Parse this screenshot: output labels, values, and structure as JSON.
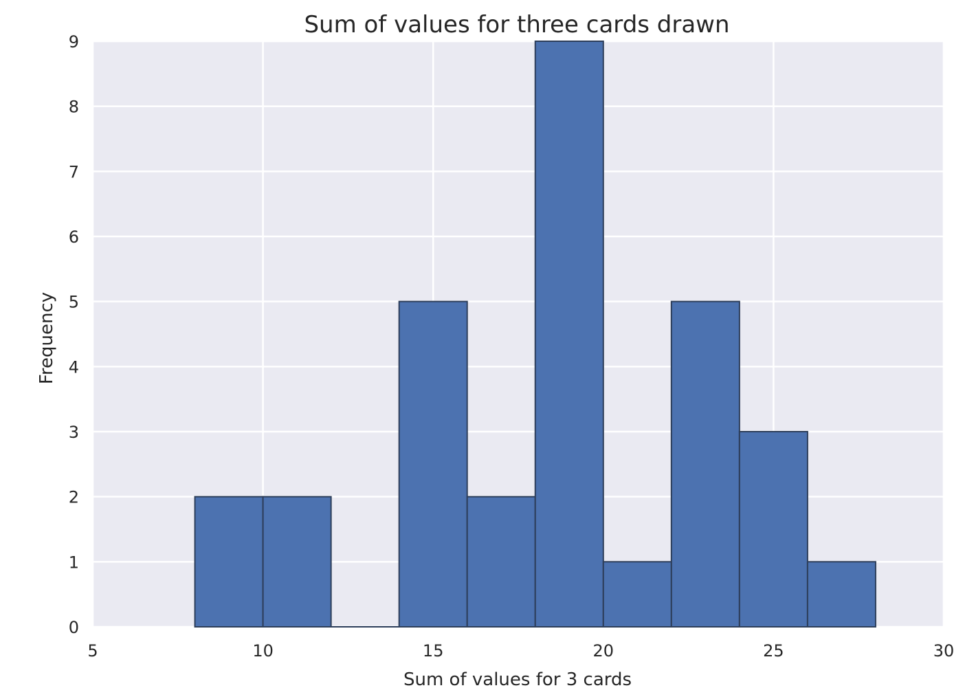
{
  "chart_data": {
    "type": "bar",
    "title": "Sum of values for three cards drawn",
    "xlabel": "Sum of values for 3 cards",
    "ylabel": "Frequency",
    "xlim": [
      5,
      30
    ],
    "ylim": [
      0,
      9
    ],
    "x_ticks": [
      5,
      10,
      15,
      20,
      25,
      30
    ],
    "y_ticks": [
      0,
      1,
      2,
      3,
      4,
      5,
      6,
      7,
      8,
      9
    ],
    "bins": [
      {
        "start": 8,
        "end": 10,
        "value": 2
      },
      {
        "start": 10,
        "end": 12,
        "value": 2
      },
      {
        "start": 12,
        "end": 14,
        "value": 0
      },
      {
        "start": 14,
        "end": 16,
        "value": 5
      },
      {
        "start": 16,
        "end": 18,
        "value": 2
      },
      {
        "start": 18,
        "end": 20,
        "value": 9
      },
      {
        "start": 20,
        "end": 22,
        "value": 1
      },
      {
        "start": 22,
        "end": 24,
        "value": 5
      },
      {
        "start": 24,
        "end": 26,
        "value": 3
      },
      {
        "start": 26,
        "end": 28,
        "value": 1
      }
    ],
    "grid": true,
    "colors": {
      "bar": "#4c72b0",
      "bar_edge": "#2d3e5a",
      "plot_background": "#eaeaf2",
      "grid": "#ffffff"
    }
  }
}
